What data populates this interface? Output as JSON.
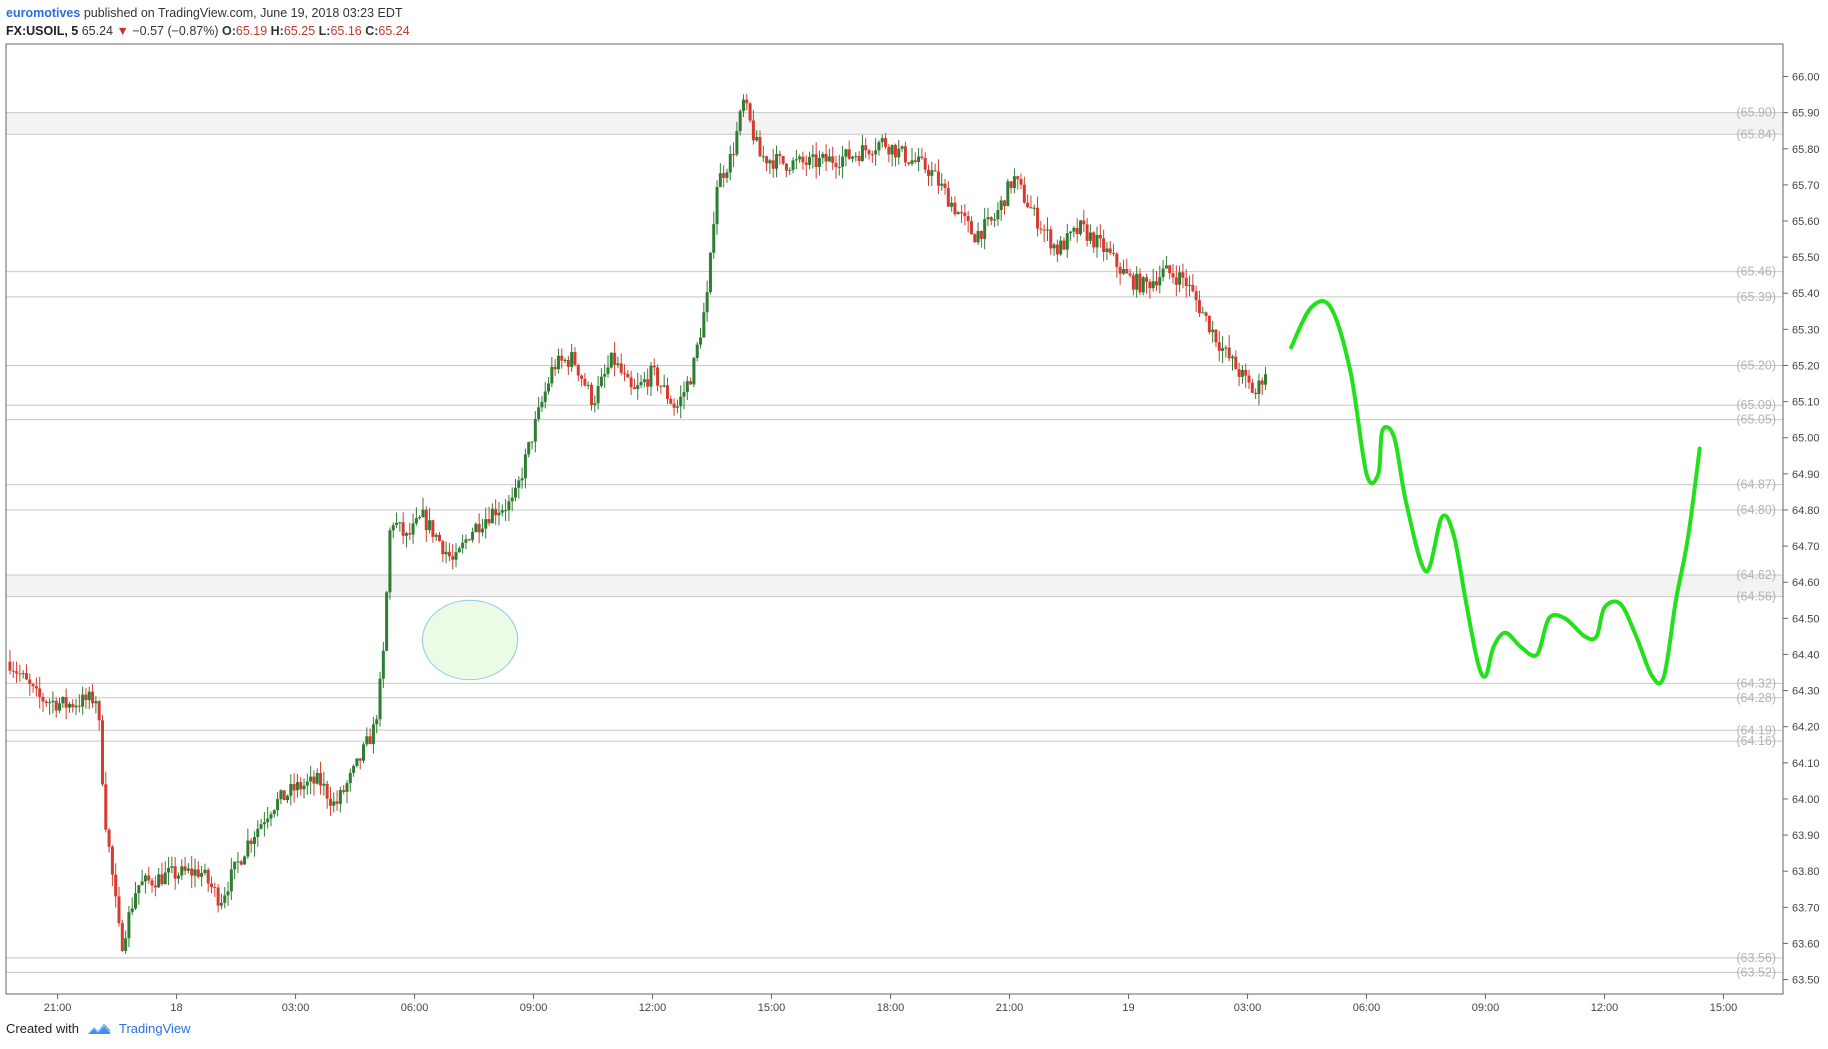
{
  "header": {
    "author": "euromotives",
    "published_text": "published on TradingView.com, June 19, 2018 03:23 EDT",
    "symbol": "FX:USOIL, 5",
    "last": "65.24",
    "arrow": "▼",
    "change": "−0.57 (−0.87%)",
    "o_label": "O:",
    "o_value": "65.19",
    "h_label": "H:",
    "h_value": "65.25",
    "l_label": "L:",
    "l_value": "65.16",
    "c_label": "C:",
    "c_value": "65.24"
  },
  "footer": {
    "created_with": "Created with",
    "brand": "TradingView"
  },
  "colors": {
    "up": "#2e7d32",
    "down": "#d63b2f",
    "projection": "#22e01a",
    "level_line": "#c8c8c8",
    "level_band": "#f3f3f3",
    "ellipse_fill": "#eafbe6",
    "ellipse_stroke": "#8ec9ea"
  },
  "chart_data": {
    "type": "candlestick",
    "symbol": "FX:USOIL, 5",
    "x_ticks": [
      "21:00",
      "18",
      "03:00",
      "06:00",
      "09:00",
      "12:00",
      "15:00",
      "18:00",
      "21:00",
      "19",
      "03:00",
      "06:00",
      "09:00",
      "12:00",
      "15:00"
    ],
    "x_tick_hours": [
      21,
      24,
      27,
      30,
      33,
      36,
      39,
      42,
      45,
      48,
      51,
      54,
      57,
      60,
      63
    ],
    "x_range_hours": [
      19.7,
      64.5
    ],
    "y_ticks": [
      "66.00",
      "65.90",
      "65.80",
      "65.70",
      "65.60",
      "65.50",
      "65.40",
      "65.30",
      "65.20",
      "65.10",
      "65.00",
      "64.90",
      "64.80",
      "64.70",
      "64.60",
      "64.50",
      "64.40",
      "64.30",
      "64.20",
      "64.10",
      "64.00",
      "63.90",
      "63.80",
      "63.70",
      "63.60",
      "63.50"
    ],
    "ylim": [
      63.46,
      66.09
    ],
    "price_anchors": [
      [
        19.8,
        64.38
      ],
      [
        20.5,
        64.28
      ],
      [
        21.2,
        64.26
      ],
      [
        22.0,
        64.28
      ],
      [
        22.2,
        63.95
      ],
      [
        22.6,
        63.59
      ],
      [
        23.0,
        63.76
      ],
      [
        23.8,
        63.79
      ],
      [
        24.6,
        63.8
      ],
      [
        25.1,
        63.72
      ],
      [
        25.8,
        63.88
      ],
      [
        26.4,
        63.98
      ],
      [
        27.0,
        64.03
      ],
      [
        27.6,
        64.05
      ],
      [
        28.0,
        63.98
      ],
      [
        28.5,
        64.08
      ],
      [
        29.0,
        64.2
      ],
      [
        29.2,
        64.37
      ],
      [
        29.4,
        64.78
      ],
      [
        29.8,
        64.72
      ],
      [
        30.2,
        64.78
      ],
      [
        30.6,
        64.72
      ],
      [
        31.0,
        64.65
      ],
      [
        31.4,
        64.74
      ],
      [
        32.0,
        64.8
      ],
      [
        32.5,
        64.82
      ],
      [
        33.0,
        65.02
      ],
      [
        33.5,
        65.2
      ],
      [
        34.0,
        65.22
      ],
      [
        34.5,
        65.1
      ],
      [
        35.0,
        65.22
      ],
      [
        35.5,
        65.12
      ],
      [
        36.0,
        65.18
      ],
      [
        36.6,
        65.08
      ],
      [
        37.0,
        65.18
      ],
      [
        37.4,
        65.4
      ],
      [
        37.6,
        65.7
      ],
      [
        38.0,
        65.78
      ],
      [
        38.3,
        65.93
      ],
      [
        38.7,
        65.78
      ],
      [
        39.3,
        65.76
      ],
      [
        40.0,
        65.76
      ],
      [
        41.0,
        65.78
      ],
      [
        41.8,
        65.82
      ],
      [
        42.5,
        65.77
      ],
      [
        43.0,
        65.74
      ],
      [
        43.6,
        65.64
      ],
      [
        44.1,
        65.56
      ],
      [
        44.6,
        65.6
      ],
      [
        45.1,
        65.72
      ],
      [
        45.6,
        65.62
      ],
      [
        46.2,
        65.52
      ],
      [
        46.8,
        65.58
      ],
      [
        47.4,
        65.52
      ],
      [
        48.0,
        65.44
      ],
      [
        48.4,
        65.42
      ],
      [
        48.9,
        65.46
      ],
      [
        49.4,
        65.44
      ],
      [
        49.9,
        65.34
      ],
      [
        50.4,
        65.24
      ],
      [
        50.8,
        65.18
      ],
      [
        51.2,
        65.12
      ],
      [
        51.5,
        65.2
      ]
    ],
    "candle_interval_hours": 0.0833,
    "levels": [
      {
        "label": "(65.90)",
        "price": 65.9
      },
      {
        "label": "(65.84)",
        "price": 65.84
      },
      {
        "label": "(65.46)",
        "price": 65.46
      },
      {
        "label": "(65.39)",
        "price": 65.39
      },
      {
        "label": "(65.20)",
        "price": 65.2
      },
      {
        "label": "(65.09)",
        "price": 65.09
      },
      {
        "label": "(65.05)",
        "price": 65.05
      },
      {
        "label": "(64.87)",
        "price": 64.87
      },
      {
        "label": "(64.80)",
        "price": 64.8
      },
      {
        "label": "(64.62)",
        "price": 64.62
      },
      {
        "label": "(64.56)",
        "price": 64.56
      },
      {
        "label": "(64.32)",
        "price": 64.32
      },
      {
        "label": "(64.28)",
        "price": 64.28
      },
      {
        "label": "(64.19)",
        "price": 64.19
      },
      {
        "label": "(64.16)",
        "price": 64.16
      },
      {
        "label": "(63.56)",
        "price": 63.56
      },
      {
        "label": "(63.52)",
        "price": 63.52
      }
    ],
    "level_bands": [
      [
        65.84,
        65.9
      ],
      [
        64.56,
        64.62
      ]
    ],
    "projection_path": [
      [
        52.1,
        65.25
      ],
      [
        52.6,
        65.36
      ],
      [
        53.1,
        65.36
      ],
      [
        53.6,
        65.18
      ],
      [
        54.0,
        64.9
      ],
      [
        54.3,
        64.9
      ],
      [
        54.4,
        65.02
      ],
      [
        54.7,
        65.0
      ],
      [
        55.0,
        64.82
      ],
      [
        55.5,
        64.63
      ],
      [
        55.9,
        64.78
      ],
      [
        56.2,
        64.73
      ],
      [
        56.5,
        64.55
      ],
      [
        56.8,
        64.38
      ],
      [
        57.0,
        64.34
      ],
      [
        57.2,
        64.42
      ],
      [
        57.5,
        64.46
      ],
      [
        57.9,
        64.42
      ],
      [
        58.3,
        64.4
      ],
      [
        58.6,
        64.5
      ],
      [
        59.0,
        64.5
      ],
      [
        59.5,
        64.45
      ],
      [
        59.8,
        64.45
      ],
      [
        60.0,
        64.53
      ],
      [
        60.4,
        64.54
      ],
      [
        60.8,
        64.45
      ],
      [
        61.2,
        64.34
      ],
      [
        61.5,
        64.34
      ],
      [
        61.8,
        64.55
      ],
      [
        62.1,
        64.72
      ],
      [
        62.4,
        64.97
      ]
    ],
    "highlight_ellipse": {
      "hour_center": 31.4,
      "price_center": 64.44,
      "hour_radius": 1.2,
      "price_radius": 0.11
    },
    "grid": false,
    "legend": "none"
  }
}
